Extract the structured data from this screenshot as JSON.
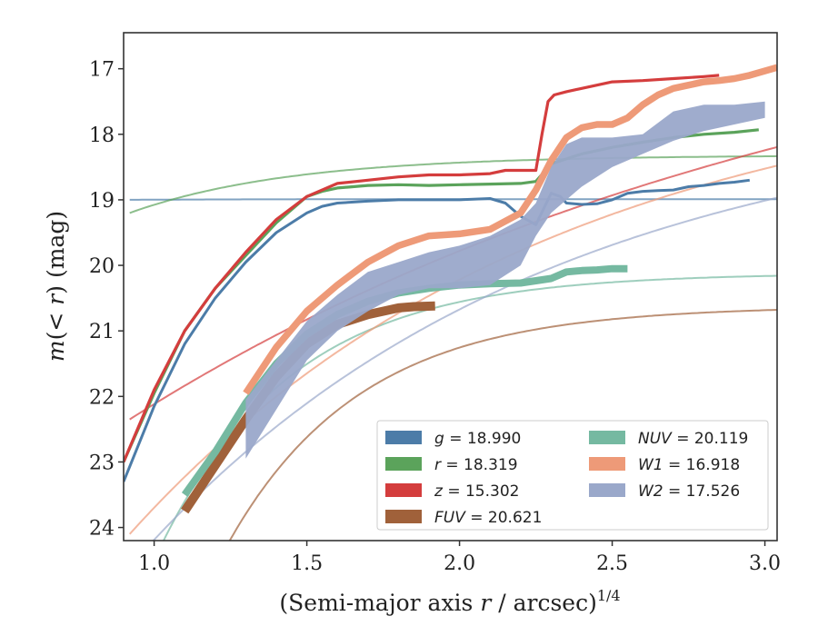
{
  "chart_data": {
    "type": "line",
    "xlabel": "(Semi-major axis r / arcsec)^{1/4}",
    "xlabel_parts": [
      "(Semi-major axis ",
      "r",
      " / arcsec)",
      "1/4"
    ],
    "ylabel": "m(< r) (mag)",
    "ylabel_parts": [
      "m",
      "(< ",
      "r",
      ") (mag)"
    ],
    "xlim": [
      0.9,
      3.04
    ],
    "ylim": [
      24.2,
      16.45
    ],
    "y_inverted": true,
    "xticks": [
      1.0,
      1.5,
      2.0,
      2.5,
      3.0
    ],
    "xtick_labels": [
      "1.0",
      "1.5",
      "2.0",
      "2.5",
      "3.0"
    ],
    "yticks": [
      17,
      18,
      19,
      20,
      21,
      22,
      23,
      24
    ],
    "ytick_labels": [
      "17",
      "18",
      "19",
      "20",
      "21",
      "22",
      "23",
      "24"
    ],
    "grid": false,
    "legend_position": "lower-right",
    "legend_columns": 2,
    "series": [
      {
        "name": "g = 18.990",
        "band": "g",
        "value": "18.990",
        "color": "#4c7ca8",
        "x": [
          0.9,
          1.0,
          1.1,
          1.2,
          1.3,
          1.4,
          1.5,
          1.55,
          1.6,
          1.7,
          1.8,
          1.9,
          2.0,
          2.1,
          2.15,
          2.2,
          2.25,
          2.3,
          2.33,
          2.35,
          2.4,
          2.45,
          2.5,
          2.55,
          2.6,
          2.65,
          2.7,
          2.75,
          2.8,
          2.85,
          2.9,
          2.95
        ],
        "y": [
          23.3,
          22.15,
          21.2,
          20.5,
          19.95,
          19.5,
          19.2,
          19.1,
          19.05,
          19.02,
          19.0,
          19.0,
          19.0,
          18.98,
          19.05,
          19.25,
          19.38,
          18.9,
          18.95,
          19.05,
          19.07,
          19.06,
          19.0,
          18.9,
          18.87,
          18.86,
          18.85,
          18.8,
          18.78,
          18.75,
          18.73,
          18.7
        ],
        "fit": {
          "mag": 18.99,
          "start": 19.0,
          "curvature": 3.0,
          "x0": 0.92
        }
      },
      {
        "name": "r = 18.319",
        "band": "r",
        "value": "18.319",
        "color": "#5ba35b",
        "x": [
          0.9,
          1.0,
          1.1,
          1.2,
          1.3,
          1.4,
          1.5,
          1.55,
          1.6,
          1.7,
          1.8,
          1.9,
          2.0,
          2.1,
          2.2,
          2.25,
          2.3,
          2.4,
          2.5,
          2.6,
          2.7,
          2.8,
          2.9,
          2.98
        ],
        "y": [
          23.0,
          21.95,
          21.0,
          20.35,
          19.85,
          19.35,
          18.95,
          18.87,
          18.82,
          18.78,
          18.77,
          18.78,
          18.77,
          18.76,
          18.75,
          18.72,
          18.45,
          18.3,
          18.2,
          18.12,
          18.05,
          18.0,
          17.97,
          17.93
        ],
        "fit": {
          "mag": 18.319,
          "start": 19.2,
          "curvature": 1.9,
          "x0": 0.92
        }
      },
      {
        "name": "z = 15.302",
        "band": "z",
        "value": "15.302",
        "color": "#d43d3d",
        "x": [
          0.9,
          1.0,
          1.1,
          1.2,
          1.3,
          1.4,
          1.5,
          1.6,
          1.7,
          1.8,
          1.9,
          2.0,
          2.1,
          2.15,
          2.2,
          2.25,
          2.27,
          2.29,
          2.31,
          2.35,
          2.4,
          2.5,
          2.6,
          2.7,
          2.8,
          2.85
        ],
        "y": [
          23.0,
          21.9,
          21.0,
          20.35,
          19.8,
          19.3,
          18.95,
          18.75,
          18.7,
          18.65,
          18.62,
          18.62,
          18.6,
          18.55,
          18.55,
          18.55,
          18.0,
          17.5,
          17.4,
          17.35,
          17.3,
          17.2,
          17.18,
          17.15,
          17.12,
          17.1
        ],
        "fit": {
          "mag": 15.302,
          "start": 22.35,
          "curvature": 0.42,
          "x0": 0.92
        }
      },
      {
        "name": "FUV = 20.621",
        "band": "FUV",
        "value": "20.621",
        "color": "#a0613a",
        "x": [
          1.1,
          1.2,
          1.3,
          1.4,
          1.5,
          1.6,
          1.7,
          1.8,
          1.85,
          1.92
        ],
        "y": [
          23.75,
          23.05,
          22.35,
          21.7,
          21.2,
          20.9,
          20.75,
          20.65,
          20.63,
          20.62
        ],
        "fit": {
          "mag": 20.621,
          "start": 25.1,
          "curvature": 2.3,
          "x0": 1.15
        }
      },
      {
        "name": "NUV = 20.119",
        "band": "NUV",
        "value": "20.119",
        "color": "#75b9a1",
        "x": [
          1.1,
          1.2,
          1.3,
          1.4,
          1.5,
          1.6,
          1.7,
          1.8,
          1.9,
          2.0,
          2.1,
          2.2,
          2.3,
          2.35,
          2.4,
          2.45,
          2.5,
          2.55
        ],
        "y": [
          23.5,
          22.85,
          22.1,
          21.5,
          21.05,
          20.75,
          20.55,
          20.42,
          20.35,
          20.3,
          20.28,
          20.27,
          20.2,
          20.1,
          20.08,
          20.07,
          20.05,
          20.05
        ],
        "fit": {
          "mag": 20.119,
          "start": 24.5,
          "curvature": 2.3,
          "x0": 1.0
        }
      },
      {
        "name": "W1 = 16.918",
        "band": "W1",
        "value": "16.918",
        "color": "#ee9a78",
        "x": [
          1.3,
          1.4,
          1.5,
          1.6,
          1.7,
          1.8,
          1.9,
          2.0,
          2.1,
          2.2,
          2.25,
          2.3,
          2.35,
          2.4,
          2.45,
          2.5,
          2.55,
          2.6,
          2.65,
          2.7,
          2.75,
          2.8,
          2.85,
          2.9,
          2.95,
          3.04
        ],
        "y": [
          21.95,
          21.25,
          20.7,
          20.3,
          19.95,
          19.7,
          19.55,
          19.52,
          19.45,
          19.2,
          18.85,
          18.4,
          18.05,
          17.9,
          17.85,
          17.85,
          17.75,
          17.55,
          17.4,
          17.3,
          17.25,
          17.2,
          17.18,
          17.15,
          17.1,
          16.98
        ],
        "fit": {
          "mag": 16.918,
          "start": 24.1,
          "curvature": 0.72,
          "x0": 0.92
        }
      },
      {
        "name": "W2 = 17.526",
        "band": "W2",
        "value": "17.526",
        "color": "#9aa8ca",
        "x": [
          1.3,
          1.4,
          1.5,
          1.6,
          1.7,
          1.8,
          1.9,
          2.0,
          2.1,
          2.2,
          2.25,
          2.3,
          2.35,
          2.4,
          2.5,
          2.6,
          2.7,
          2.8,
          2.9,
          3.0
        ],
        "y_low": [
          22.95,
          22.2,
          21.45,
          21.0,
          20.7,
          20.45,
          20.35,
          20.35,
          20.3,
          20.0,
          19.55,
          19.2,
          19.0,
          18.8,
          18.5,
          18.3,
          18.1,
          17.95,
          17.85,
          17.75
        ],
        "y_high": [
          22.05,
          21.45,
          20.85,
          20.45,
          20.1,
          19.95,
          19.8,
          19.7,
          19.55,
          19.3,
          19.05,
          18.5,
          18.15,
          18.05,
          18.05,
          18.0,
          17.65,
          17.55,
          17.55,
          17.5
        ],
        "fit": {
          "mag": 17.526,
          "start": 24.6,
          "curvature": 0.75,
          "x0": 0.92
        }
      }
    ]
  }
}
